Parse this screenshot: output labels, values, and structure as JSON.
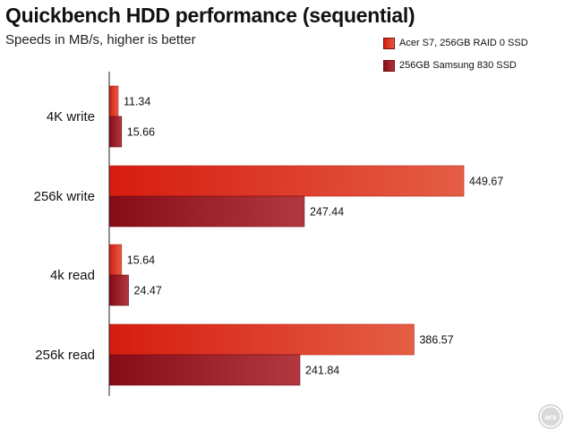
{
  "chart_data": {
    "type": "bar",
    "orientation": "horizontal",
    "title": "Quickbench HDD performance (sequential)",
    "subtitle": "Speeds in MB/s, higher is better",
    "categories": [
      "4K write",
      "256k write",
      "4k read",
      "256k read"
    ],
    "series": [
      {
        "name": "Acer S7, 256GB RAID 0 SSD",
        "values": [
          11.34,
          449.67,
          15.64,
          386.57
        ],
        "color": "#e0402a"
      },
      {
        "name": "256GB Samsung 830 SSD",
        "values": [
          15.66,
          247.44,
          24.47,
          241.84
        ],
        "color": "#9e1a22"
      }
    ],
    "value_labels": [
      [
        "11.34",
        "449.67",
        "15.64",
        "386.57"
      ],
      [
        "15.66",
        "247.44",
        "24.47",
        "241.84"
      ]
    ],
    "xlim": [
      0,
      520
    ],
    "grid": false,
    "legend_position": "top-right"
  },
  "branding": {
    "logo_text": "ars"
  }
}
